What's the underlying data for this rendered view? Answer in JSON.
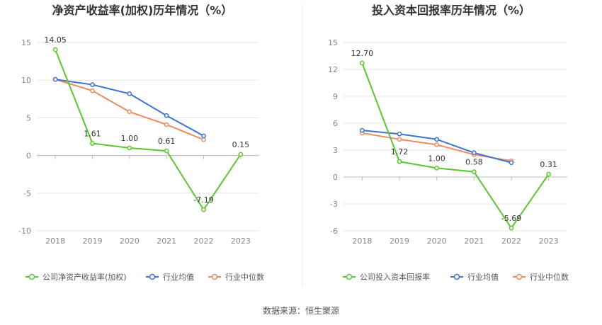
{
  "source": "数据来源：恒生聚源",
  "chart_data": [
    {
      "type": "line",
      "title": "净资产收益率(加权)历年情况（%）",
      "categories": [
        "2018",
        "2019",
        "2020",
        "2021",
        "2022",
        "2023"
      ],
      "ylim": [
        -10,
        15
      ],
      "yticks": [
        15,
        10,
        5,
        0,
        -5,
        -10
      ],
      "grid": true,
      "legend_position": "bottom",
      "series": [
        {
          "name": "公司净资产收益率(加权)",
          "color": "#5bc72e",
          "values": [
            14.05,
            1.61,
            1.0,
            0.61,
            -7.19,
            0.15
          ],
          "labels": [
            "14.05",
            "1.61",
            "1.00",
            "0.61",
            "-7.19",
            "0.15"
          ]
        },
        {
          "name": "行业均值",
          "color": "#3f73d3",
          "values": [
            10.1,
            9.4,
            8.2,
            5.3,
            2.6,
            null
          ]
        },
        {
          "name": "行业中位数",
          "color": "#f08a5d",
          "values": [
            10.1,
            8.6,
            5.8,
            4.1,
            2.1,
            null
          ]
        }
      ]
    },
    {
      "type": "line",
      "title": "投入资本回报率历年情况（%）",
      "categories": [
        "2018",
        "2019",
        "2020",
        "2021",
        "2022",
        "2023"
      ],
      "ylim": [
        -6,
        15
      ],
      "yticks": [
        15,
        12,
        9,
        6,
        3,
        0,
        -3,
        -6
      ],
      "grid": true,
      "legend_position": "bottom",
      "series": [
        {
          "name": "公司投入资本回报率",
          "color": "#5bc72e",
          "values": [
            12.7,
            1.72,
            1.0,
            0.58,
            -5.69,
            0.31
          ],
          "labels": [
            "12.70",
            "1.72",
            "1.00",
            "0.58",
            "-5.69",
            "0.31"
          ]
        },
        {
          "name": "行业均值",
          "color": "#3f73d3",
          "values": [
            5.2,
            4.8,
            4.2,
            2.7,
            1.6,
            null
          ]
        },
        {
          "name": "行业中位数",
          "color": "#f08a5d",
          "values": [
            4.9,
            4.2,
            3.6,
            2.5,
            1.8,
            null
          ]
        }
      ]
    }
  ]
}
